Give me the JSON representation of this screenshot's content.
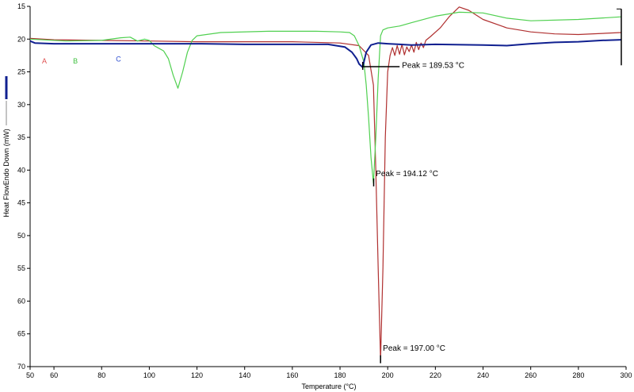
{
  "chart_data": {
    "type": "line",
    "xlabel": "Temperature (°C)",
    "ylabel": "Heat FlowEndo Down (mW)",
    "xlim": [
      50,
      300
    ],
    "ylim": [
      15,
      70
    ],
    "y_inverted": true,
    "xticks": [
      50,
      60,
      80,
      100,
      120,
      140,
      160,
      180,
      200,
      220,
      240,
      260,
      280,
      300
    ],
    "yticks": [
      15,
      20,
      25,
      30,
      35,
      40,
      45,
      50,
      55,
      60,
      65,
      70
    ],
    "grid": false,
    "legend_markers": [
      {
        "label": "A",
        "color": "#e05050",
        "x": 55,
        "y": 23.7
      },
      {
        "label": "B",
        "color": "#40c040",
        "x": 68,
        "y": 23.7
      },
      {
        "label": "C",
        "color": "#3050d0",
        "x": 86,
        "y": 23.4
      }
    ],
    "series": [
      {
        "color": "#b03030",
        "width": 1.2,
        "points": [
          [
            50,
            19.9
          ],
          [
            60,
            20.1
          ],
          [
            80,
            20.2
          ],
          [
            100,
            20.3
          ],
          [
            120,
            20.4
          ],
          [
            140,
            20.4
          ],
          [
            160,
            20.4
          ],
          [
            180,
            20.6
          ],
          [
            188,
            21.0
          ],
          [
            192,
            22.5
          ],
          [
            194,
            27
          ],
          [
            195,
            40
          ],
          [
            196,
            55
          ],
          [
            197,
            69
          ],
          [
            198,
            55
          ],
          [
            199,
            35
          ],
          [
            200,
            25
          ],
          [
            201,
            22.5
          ],
          [
            202,
            21.3
          ],
          [
            203,
            22.5
          ],
          [
            204,
            21.0
          ],
          [
            205,
            22.3
          ],
          [
            206,
            20.8
          ],
          [
            207,
            22.4
          ],
          [
            208,
            21.2
          ],
          [
            209,
            21.9
          ],
          [
            210,
            20.9
          ],
          [
            211,
            22.0
          ],
          [
            212,
            20.5
          ],
          [
            213,
            21.6
          ],
          [
            214,
            20.6
          ],
          [
            215,
            21.3
          ],
          [
            216,
            20.2
          ],
          [
            218,
            19.6
          ],
          [
            222,
            18.3
          ],
          [
            226,
            16.5
          ],
          [
            230,
            15.1
          ],
          [
            234,
            15.6
          ],
          [
            240,
            17.0
          ],
          [
            250,
            18.3
          ],
          [
            260,
            18.9
          ],
          [
            270,
            19.2
          ],
          [
            280,
            19.3
          ],
          [
            298,
            19.0
          ]
        ]
      },
      {
        "color": "#50d050",
        "width": 1.2,
        "points": [
          [
            50,
            20.0
          ],
          [
            65,
            20.3
          ],
          [
            80,
            20.2
          ],
          [
            88,
            19.8
          ],
          [
            92,
            19.7
          ],
          [
            95,
            20.3
          ],
          [
            98,
            20.0
          ],
          [
            100,
            20.2
          ],
          [
            102,
            21.0
          ],
          [
            104,
            21.4
          ],
          [
            106,
            21.8
          ],
          [
            108,
            23.0
          ],
          [
            110,
            25.5
          ],
          [
            112,
            27.5
          ],
          [
            114,
            25.0
          ],
          [
            116,
            22.0
          ],
          [
            118,
            20.2
          ],
          [
            120,
            19.5
          ],
          [
            130,
            19.0
          ],
          [
            150,
            18.8
          ],
          [
            170,
            18.8
          ],
          [
            180,
            18.9
          ],
          [
            184,
            19.0
          ],
          [
            186,
            19.5
          ],
          [
            188,
            21.0
          ],
          [
            190,
            23.5
          ],
          [
            191,
            27.0
          ],
          [
            192,
            32.0
          ],
          [
            193,
            38.0
          ],
          [
            194,
            42.0
          ],
          [
            195,
            35.0
          ],
          [
            196,
            26.0
          ],
          [
            197,
            19.5
          ],
          [
            198,
            18.6
          ],
          [
            200,
            18.3
          ],
          [
            205,
            18.0
          ],
          [
            210,
            17.5
          ],
          [
            220,
            16.5
          ],
          [
            230,
            15.9
          ],
          [
            240,
            16.0
          ],
          [
            250,
            16.8
          ],
          [
            260,
            17.2
          ],
          [
            280,
            17.0
          ],
          [
            298,
            16.6
          ]
        ]
      },
      {
        "color": "#102090",
        "width": 2.0,
        "points": [
          [
            50,
            20.3
          ],
          [
            52,
            20.6
          ],
          [
            60,
            20.7
          ],
          [
            80,
            20.7
          ],
          [
            100,
            20.7
          ],
          [
            120,
            20.7
          ],
          [
            140,
            20.8
          ],
          [
            160,
            20.8
          ],
          [
            175,
            20.8
          ],
          [
            182,
            21.2
          ],
          [
            185,
            22.0
          ],
          [
            187,
            23.0
          ],
          [
            188,
            23.8
          ],
          [
            189.5,
            24.3
          ],
          [
            191,
            22.0
          ],
          [
            193,
            20.9
          ],
          [
            196,
            20.6
          ],
          [
            200,
            20.7
          ],
          [
            210,
            20.9
          ],
          [
            220,
            20.8
          ],
          [
            240,
            20.9
          ],
          [
            250,
            21.0
          ],
          [
            260,
            20.7
          ],
          [
            270,
            20.5
          ],
          [
            280,
            20.4
          ],
          [
            290,
            20.2
          ],
          [
            298,
            20.1
          ]
        ]
      }
    ],
    "annotations": [
      {
        "text": "Peak = 189.53 °C",
        "peak_x": 189.53,
        "peak_y": 24.2,
        "line_to_x": 205,
        "label_x": 206,
        "label_y": 24.4
      },
      {
        "text": "Peak = 194.12 °C",
        "peak_x": 194.12,
        "peak_y": 42.0,
        "line_to_x": 194.12,
        "label_x": 195,
        "label_y": 40.9
      },
      {
        "text": "Peak = 197.00 °C",
        "peak_x": 197.0,
        "peak_y": 69.0,
        "line_to_x": 197.0,
        "label_x": 198,
        "label_y": 67.6
      }
    ],
    "right_edge_marker": {
      "x": 298,
      "y_top": 15.4,
      "y_bottom": 24.0
    }
  }
}
